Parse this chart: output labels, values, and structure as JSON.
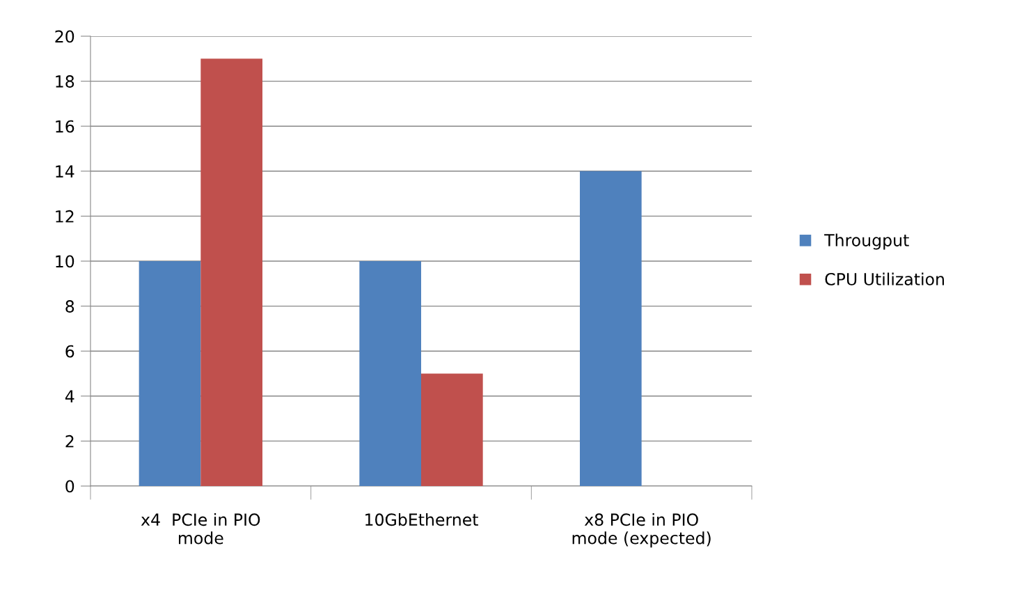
{
  "chart_data": {
    "type": "bar",
    "categories": [
      "x4  PCIe in PIO mode",
      "10GbEthernet",
      "x8 PCIe in PIO mode (expected)"
    ],
    "series": [
      {
        "name": "Througput",
        "color": "#4f81bd",
        "values": [
          10,
          10,
          14
        ]
      },
      {
        "name": "CPU Utilization",
        "color": "#c0504d",
        "values": [
          19,
          5,
          null
        ]
      }
    ],
    "ylim": [
      0,
      20
    ],
    "yticks": [
      0,
      2,
      4,
      6,
      8,
      10,
      12,
      14,
      16,
      18,
      20
    ],
    "grid": "y",
    "legend": "right"
  }
}
